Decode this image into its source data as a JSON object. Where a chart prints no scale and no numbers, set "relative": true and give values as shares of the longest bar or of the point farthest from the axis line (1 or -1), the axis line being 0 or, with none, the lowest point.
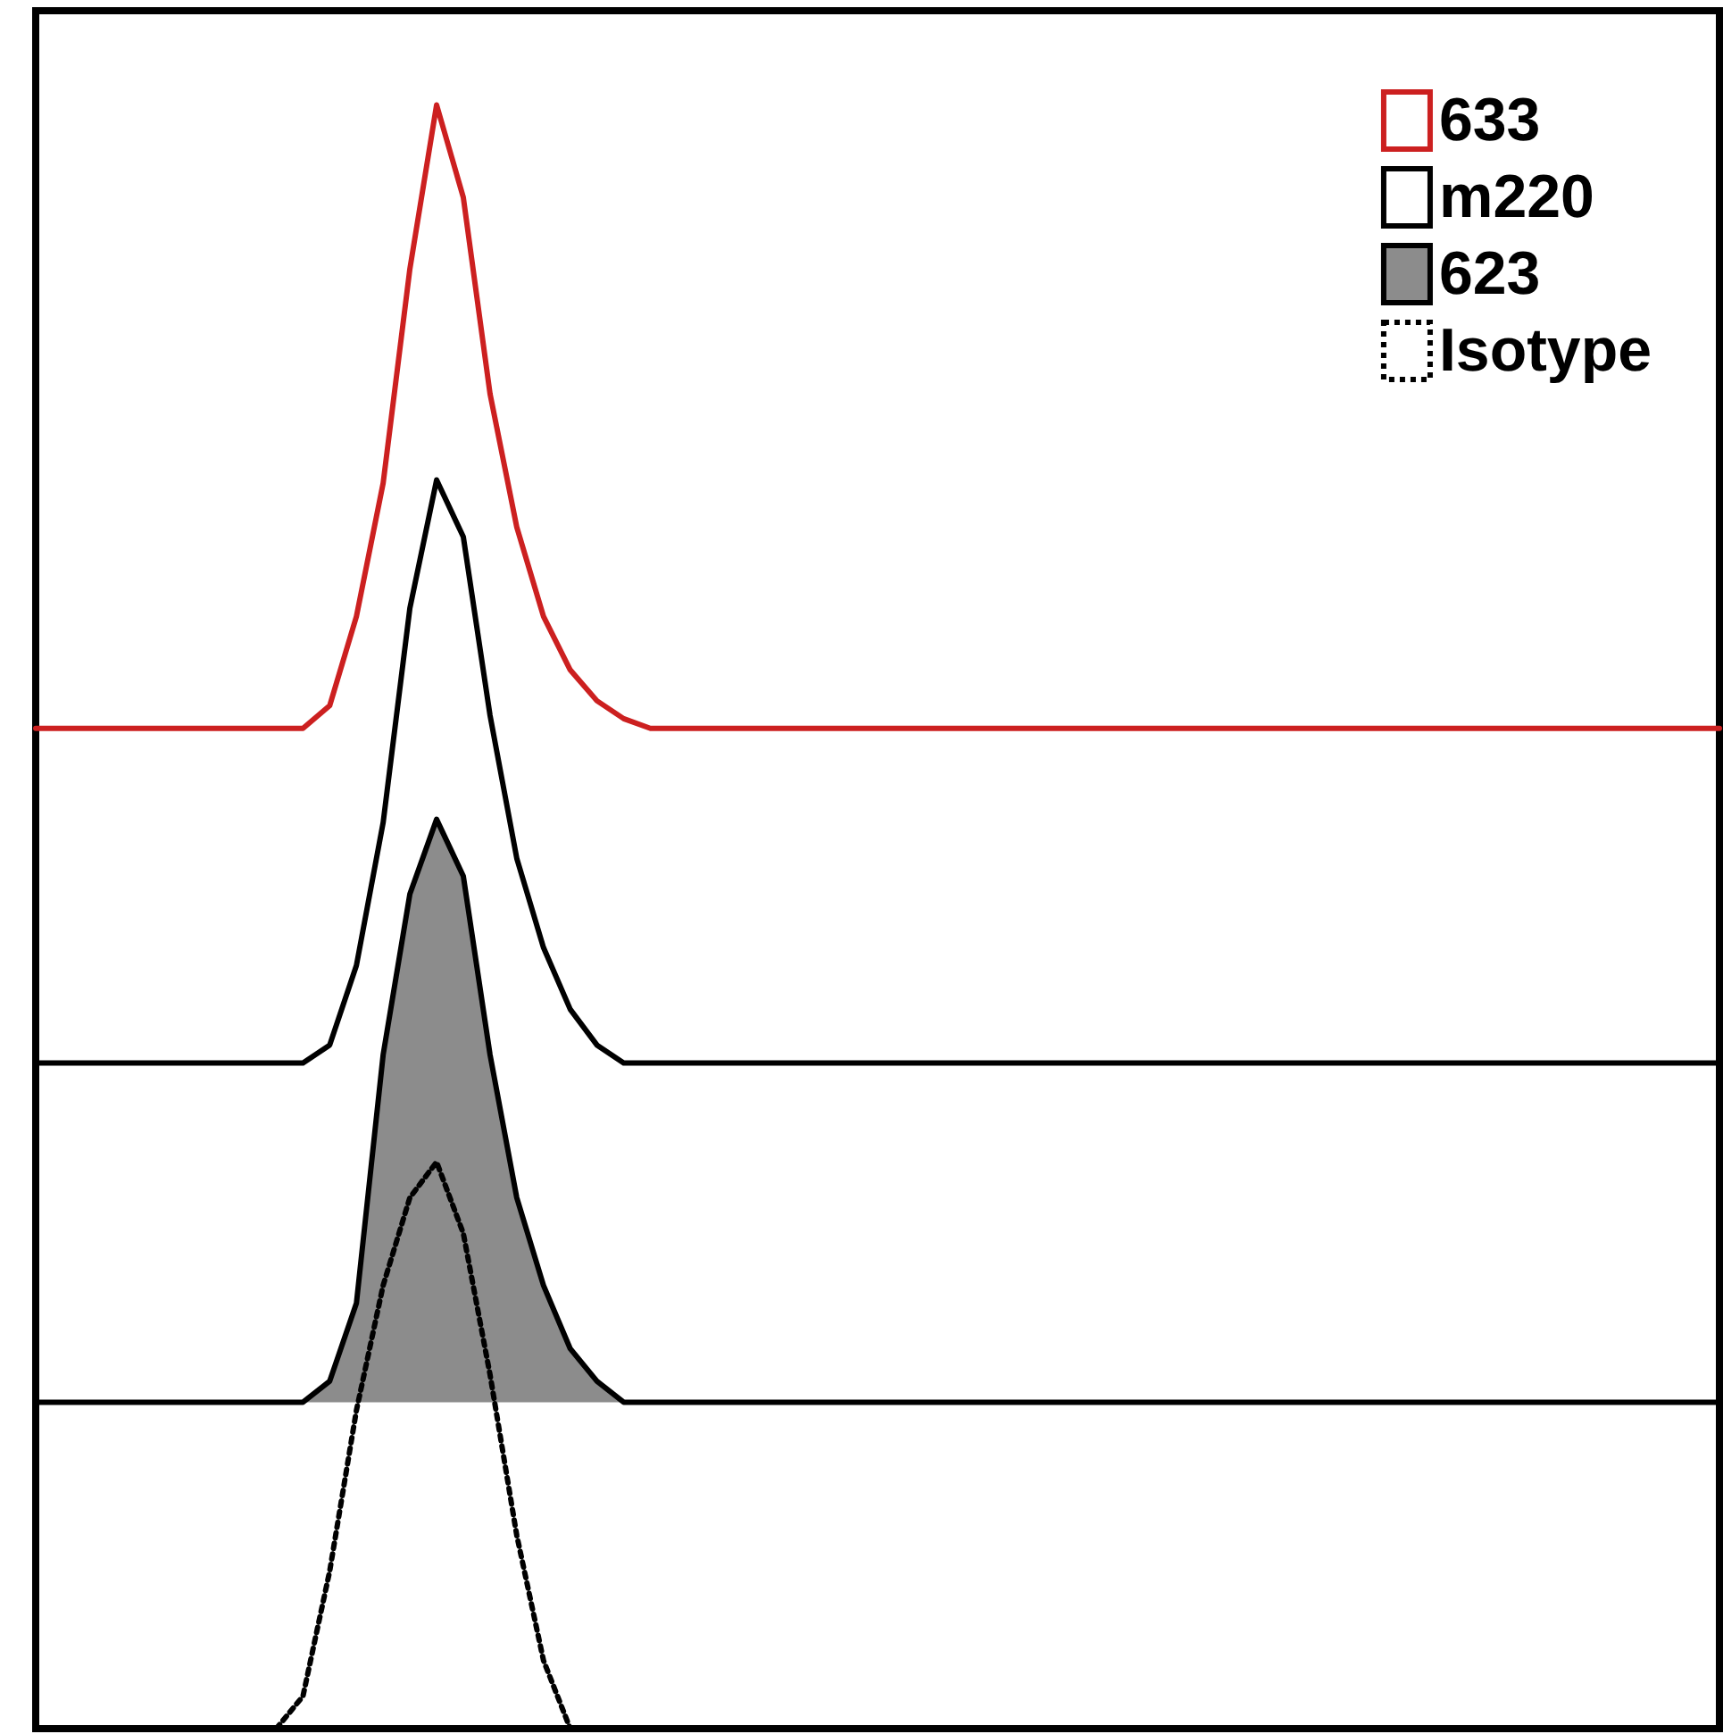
{
  "chart_data": {
    "type": "line",
    "relative": true,
    "legend": "top right",
    "marker": "none",
    "categories": [
      null,
      null,
      null,
      null,
      null,
      null,
      null,
      null,
      null,
      null,
      null,
      null,
      null,
      null,
      null,
      null,
      null,
      null,
      null,
      null,
      null,
      null,
      null,
      null,
      null,
      null,
      null,
      null,
      null,
      null,
      null,
      null,
      null,
      null,
      null,
      null,
      null,
      null,
      null,
      null,
      null,
      null,
      null,
      null,
      null,
      null,
      null,
      null,
      null,
      null,
      null,
      null,
      null,
      null,
      null,
      null,
      null,
      null,
      null,
      null,
      null,
      null,
      null,
      null
    ],
    "series": [
      {
        "name": "633",
        "color": "#cc2020",
        "line_style": "solid",
        "values": [
          0.616,
          0.616,
          0.616,
          0.616,
          0.616,
          0.616,
          0.616,
          0.616,
          0.616,
          0.616,
          0.616,
          0.63,
          0.685,
          0.767,
          0.899,
          1,
          0.943,
          0.822,
          0.74,
          0.685,
          0.652,
          0.633,
          0.622,
          0.616,
          0.616,
          0.616,
          0.616,
          0.616,
          0.616,
          0.616,
          0.616,
          0.616,
          0.616,
          0.616,
          0.616,
          0.616,
          0.616,
          0.616,
          0.616,
          0.616,
          0.616,
          0.616,
          0.616,
          0.616,
          0.616,
          0.616,
          0.616,
          0.616,
          0.616,
          0.616,
          0.616,
          0.616,
          0.616,
          0.616,
          0.616,
          0.616,
          0.616,
          0.616,
          0.616,
          0.616,
          0.616,
          0.616,
          0.616,
          0.616
        ]
      },
      {
        "name": "m220",
        "color": "#000000",
        "line_style": "solid",
        "values": [
          0.41,
          0.41,
          0.41,
          0.41,
          0.41,
          0.41,
          0.41,
          0.41,
          0.41,
          0.41,
          0.41,
          0.421,
          0.47,
          0.558,
          0.69,
          0.769,
          0.734,
          0.624,
          0.536,
          0.481,
          0.443,
          0.421,
          0.41,
          0.41,
          0.41,
          0.41,
          0.41,
          0.41,
          0.41,
          0.41,
          0.41,
          0.41,
          0.41,
          0.41,
          0.41,
          0.41,
          0.41,
          0.41,
          0.41,
          0.41,
          0.41,
          0.41,
          0.41,
          0.41,
          0.41,
          0.41,
          0.41,
          0.41,
          0.41,
          0.41,
          0.41,
          0.41,
          0.41,
          0.41,
          0.41,
          0.41,
          0.41,
          0.41,
          0.41,
          0.41,
          0.41,
          0.41,
          0.41,
          0.41
        ]
      },
      {
        "name": "623",
        "type": "area",
        "color": "#8c8c8c",
        "line_style": "solid",
        "values": [
          0.201,
          0.201,
          0.201,
          0.201,
          0.201,
          0.201,
          0.201,
          0.201,
          0.201,
          0.201,
          0.201,
          0.214,
          0.262,
          0.415,
          0.514,
          0.56,
          0.525,
          0.415,
          0.327,
          0.273,
          0.234,
          0.214,
          0.201,
          0.201,
          0.201,
          0.201,
          0.201,
          0.201,
          0.201,
          0.201,
          0.201,
          0.201,
          0.201,
          0.201,
          0.201,
          0.201,
          0.201,
          0.201,
          0.201,
          0.201,
          0.201,
          0.201,
          0.201,
          0.201,
          0.201,
          0.201,
          0.201,
          0.201,
          0.201,
          0.201,
          0.201,
          0.201,
          0.201,
          0.201,
          0.201,
          0.201,
          0.201,
          0.201,
          0.201,
          0.201,
          0.201,
          0.201,
          0.201,
          0.201
        ]
      },
      {
        "name": "Isotype",
        "color": "#000000",
        "line_style": "dotted",
        "values": [
          null,
          null,
          null,
          null,
          null,
          null,
          null,
          null,
          null,
          0,
          0.02,
          0.097,
          0.196,
          0.273,
          0.327,
          0.349,
          0.305,
          0.218,
          0.119,
          0.042,
          0,
          null,
          null,
          null,
          null,
          null,
          null,
          null,
          null,
          null,
          null,
          null,
          null,
          null,
          null,
          null,
          null,
          null,
          null,
          null,
          null,
          null,
          null,
          null,
          null,
          null,
          null,
          null,
          null,
          null,
          null,
          null,
          null,
          null,
          null,
          null,
          null,
          null,
          null,
          null,
          null,
          null,
          null,
          null
        ]
      }
    ]
  }
}
